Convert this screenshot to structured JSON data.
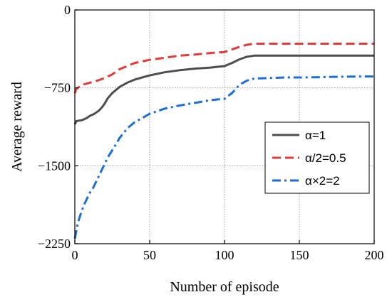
{
  "chart_data": {
    "type": "line",
    "xlabel": "Number of episode",
    "ylabel": "Average reward",
    "xlim": [
      0,
      200
    ],
    "ylim": [
      -2250,
      0
    ],
    "xticks": [
      0,
      50,
      100,
      150,
      200
    ],
    "yticks": [
      -2250,
      -1500,
      -750,
      0
    ],
    "ytick_labels": [
      "−2250",
      "−1500",
      "−750",
      "0"
    ],
    "grid": true,
    "legend_position": "right",
    "series": [
      {
        "name": "α=1",
        "color": "#4d4d4d",
        "style": "solid",
        "x": [
          0,
          1,
          3,
          5,
          8,
          10,
          13,
          16,
          18,
          20,
          22,
          25,
          30,
          35,
          40,
          50,
          60,
          70,
          80,
          90,
          100,
          105,
          110,
          115,
          120,
          130,
          140,
          150,
          160,
          170,
          180,
          190,
          200
        ],
        "y": [
          -1100,
          -1070,
          -1065,
          -1060,
          -1040,
          -1020,
          -1000,
          -970,
          -940,
          -900,
          -850,
          -800,
          -740,
          -700,
          -670,
          -630,
          -600,
          -580,
          -565,
          -555,
          -540,
          -510,
          -475,
          -450,
          -440,
          -440,
          -440,
          -440,
          -440,
          -440,
          -440,
          -440,
          -440
        ]
      },
      {
        "name": "α/2=0.5",
        "color": "#e03c3c",
        "style": "dashed",
        "x": [
          0,
          1,
          3,
          5,
          10,
          15,
          20,
          25,
          30,
          35,
          40,
          50,
          60,
          70,
          80,
          90,
          100,
          105,
          110,
          115,
          120,
          130,
          140,
          150,
          160,
          170,
          180,
          190,
          200
        ],
        "y": [
          -800,
          -760,
          -740,
          -720,
          -700,
          -680,
          -655,
          -620,
          -570,
          -540,
          -510,
          -480,
          -460,
          -440,
          -430,
          -415,
          -405,
          -380,
          -355,
          -335,
          -325,
          -325,
          -325,
          -325,
          -325,
          -325,
          -325,
          -325,
          -325
        ]
      },
      {
        "name": "α×2=2",
        "color": "#1f6ed4",
        "style": "dashdot",
        "x": [
          0,
          2,
          4,
          6,
          8,
          10,
          12,
          14,
          16,
          18,
          20,
          22,
          25,
          28,
          30,
          35,
          40,
          45,
          50,
          60,
          70,
          80,
          90,
          100,
          105,
          110,
          115,
          120,
          130,
          140,
          150,
          160,
          170,
          180,
          190,
          200
        ],
        "y": [
          -2200,
          -2050,
          -1960,
          -1880,
          -1820,
          -1760,
          -1720,
          -1660,
          -1600,
          -1540,
          -1480,
          -1420,
          -1350,
          -1280,
          -1230,
          -1140,
          -1080,
          -1040,
          -1000,
          -950,
          -920,
          -895,
          -870,
          -855,
          -800,
          -720,
          -680,
          -660,
          -655,
          -650,
          -650,
          -648,
          -645,
          -643,
          -640,
          -640
        ]
      }
    ]
  }
}
